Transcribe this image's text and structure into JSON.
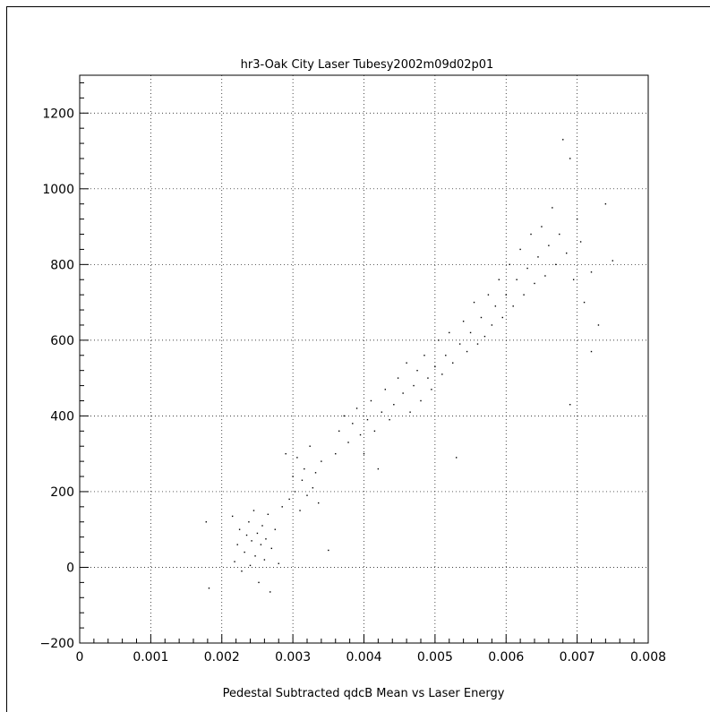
{
  "chart_data": {
    "type": "scatter",
    "title": "hr3-Oak City Laser Tubesy2002m09d02p01",
    "xlabel": "Pedestal Subtracted qdcB Mean vs Laser Energy",
    "ylabel": "",
    "xlim": [
      0,
      0.008
    ],
    "ylim": [
      -200,
      1300
    ],
    "x_ticks": [
      0,
      0.001,
      0.002,
      0.003,
      0.004,
      0.005,
      0.006,
      0.007,
      0.008
    ],
    "x_tick_labels": [
      "0",
      "0.001",
      "0.002",
      "0.003",
      "0.004",
      "0.005",
      "0.006",
      "0.007",
      "0.008"
    ],
    "y_ticks": [
      -200,
      0,
      200,
      400,
      600,
      800,
      1000,
      1200
    ],
    "y_tick_labels": [
      "−200",
      "0",
      "200",
      "400",
      "600",
      "800",
      "1000",
      "1200"
    ],
    "grid": true,
    "marker": "dot",
    "series": [
      {
        "points": [
          [
            0.00178,
            120
          ],
          [
            0.00182,
            -55
          ],
          [
            0.00215,
            135
          ],
          [
            0.00218,
            15
          ],
          [
            0.00222,
            60
          ],
          [
            0.00225,
            100
          ],
          [
            0.00228,
            -10
          ],
          [
            0.00232,
            40
          ],
          [
            0.00235,
            85
          ],
          [
            0.00238,
            120
          ],
          [
            0.0024,
            5
          ],
          [
            0.00242,
            70
          ],
          [
            0.00245,
            150
          ],
          [
            0.00247,
            30
          ],
          [
            0.0025,
            90
          ],
          [
            0.00252,
            -40
          ],
          [
            0.00255,
            60
          ],
          [
            0.00257,
            110
          ],
          [
            0.0026,
            20
          ],
          [
            0.00262,
            75
          ],
          [
            0.00265,
            140
          ],
          [
            0.00268,
            -65
          ],
          [
            0.0027,
            50
          ],
          [
            0.00275,
            100
          ],
          [
            0.0028,
            10
          ],
          [
            0.00285,
            160
          ],
          [
            0.0029,
            300
          ],
          [
            0.00295,
            180
          ],
          [
            0.003,
            240
          ],
          [
            0.00303,
            200
          ],
          [
            0.00306,
            290
          ],
          [
            0.0031,
            150
          ],
          [
            0.00313,
            230
          ],
          [
            0.00316,
            260
          ],
          [
            0.0032,
            190
          ],
          [
            0.00324,
            320
          ],
          [
            0.00328,
            210
          ],
          [
            0.00332,
            250
          ],
          [
            0.00336,
            170
          ],
          [
            0.0034,
            280
          ],
          [
            0.0035,
            45
          ],
          [
            0.0036,
            300
          ],
          [
            0.00365,
            360
          ],
          [
            0.00372,
            400
          ],
          [
            0.00378,
            330
          ],
          [
            0.00384,
            380
          ],
          [
            0.0039,
            420
          ],
          [
            0.00395,
            350
          ],
          [
            0.004,
            300
          ],
          [
            0.00405,
            390
          ],
          [
            0.0041,
            440
          ],
          [
            0.00415,
            360
          ],
          [
            0.0042,
            260
          ],
          [
            0.00425,
            410
          ],
          [
            0.0043,
            470
          ],
          [
            0.00436,
            390
          ],
          [
            0.00442,
            430
          ],
          [
            0.00448,
            500
          ],
          [
            0.00455,
            460
          ],
          [
            0.0046,
            540
          ],
          [
            0.00465,
            410
          ],
          [
            0.0047,
            480
          ],
          [
            0.00475,
            520
          ],
          [
            0.0048,
            440
          ],
          [
            0.00485,
            560
          ],
          [
            0.0049,
            500
          ],
          [
            0.00495,
            470
          ],
          [
            0.005,
            530
          ],
          [
            0.00505,
            600
          ],
          [
            0.0051,
            510
          ],
          [
            0.00515,
            560
          ],
          [
            0.0052,
            620
          ],
          [
            0.00525,
            540
          ],
          [
            0.0053,
            290
          ],
          [
            0.00535,
            590
          ],
          [
            0.0054,
            650
          ],
          [
            0.00545,
            570
          ],
          [
            0.0055,
            620
          ],
          [
            0.00555,
            700
          ],
          [
            0.0056,
            590
          ],
          [
            0.00565,
            660
          ],
          [
            0.0057,
            610
          ],
          [
            0.00575,
            720
          ],
          [
            0.0058,
            640
          ],
          [
            0.00585,
            690
          ],
          [
            0.0059,
            760
          ],
          [
            0.00595,
            660
          ],
          [
            0.006,
            720
          ],
          [
            0.00605,
            800
          ],
          [
            0.0061,
            690
          ],
          [
            0.00615,
            760
          ],
          [
            0.0062,
            840
          ],
          [
            0.00625,
            720
          ],
          [
            0.0063,
            790
          ],
          [
            0.00635,
            880
          ],
          [
            0.0064,
            750
          ],
          [
            0.00645,
            820
          ],
          [
            0.0065,
            900
          ],
          [
            0.00655,
            770
          ],
          [
            0.0066,
            850
          ],
          [
            0.00665,
            950
          ],
          [
            0.0067,
            800
          ],
          [
            0.00675,
            880
          ],
          [
            0.0068,
            1130
          ],
          [
            0.00685,
            830
          ],
          [
            0.0069,
            1080
          ],
          [
            0.00695,
            760
          ],
          [
            0.007,
            920
          ],
          [
            0.00705,
            860
          ],
          [
            0.0071,
            700
          ],
          [
            0.0072,
            780
          ],
          [
            0.0073,
            640
          ],
          [
            0.0074,
            960
          ],
          [
            0.0075,
            810
          ],
          [
            0.0069,
            430
          ],
          [
            0.0072,
            570
          ]
        ]
      }
    ]
  }
}
